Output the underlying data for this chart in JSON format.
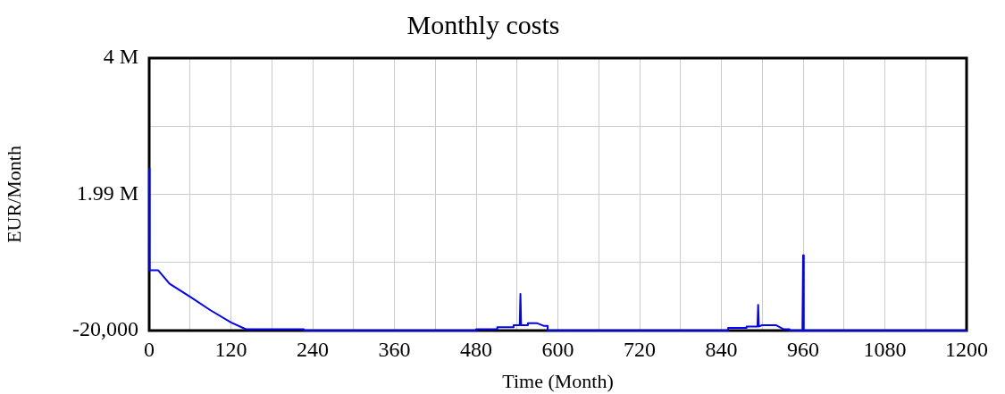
{
  "chart_data": {
    "type": "line",
    "title": "Monthly costs",
    "xlabel": "Time (Month)",
    "ylabel": "EUR/Month",
    "series": [
      {
        "color": "#0000ff",
        "x": [
          0,
          0.5,
          13,
          30,
          60,
          90,
          120,
          142,
          227,
          227,
          480,
          480,
          511,
          511,
          535,
          535,
          544,
          545,
          546,
          556,
          556,
          569,
          579,
          585,
          585,
          850,
          850,
          877,
          877,
          893,
          894,
          895,
          900,
          920,
          931,
          940,
          940,
          959,
          960,
          961,
          1200
        ],
        "values": [
          2370000,
          870000,
          870000,
          670000,
          480000,
          280000,
          100000,
          0,
          0,
          -20000,
          -20000,
          0,
          0,
          30000,
          30000,
          60000,
          60000,
          520000,
          60000,
          60000,
          90000,
          90000,
          50000,
          50000,
          -20000,
          -20000,
          20000,
          20000,
          40000,
          40000,
          360000,
          40000,
          60000,
          60000,
          0,
          0,
          -20000,
          -20000,
          1090000,
          -20000,
          -20000
        ]
      }
    ],
    "xlim": [
      0,
      1200
    ],
    "xticks": [
      0,
      {
        "value": 60,
        "label": null
      },
      120,
      {
        "value": 180,
        "label": null
      },
      240,
      {
        "value": 300,
        "label": null
      },
      360,
      {
        "value": 420,
        "label": null
      },
      480,
      {
        "value": 540,
        "label": null
      },
      600,
      {
        "value": 660,
        "label": null
      },
      720,
      {
        "value": 780,
        "label": null
      },
      840,
      {
        "value": 900,
        "label": null
      },
      960,
      {
        "value": 1020,
        "label": null
      },
      1080,
      {
        "value": 1140,
        "label": null
      },
      1200
    ],
    "ylim": [
      -20000,
      4000000
    ],
    "yticks": [
      {
        "value": -20000,
        "label": "-20,000"
      },
      {
        "value": 985000,
        "label": null
      },
      {
        "value": 1990000,
        "label": "1.99 M"
      },
      {
        "value": 2995000,
        "label": null
      },
      {
        "value": 4000000,
        "label": "4 M"
      }
    ],
    "grid": true,
    "legend": false,
    "marker": "none",
    "line_style": "solid"
  }
}
